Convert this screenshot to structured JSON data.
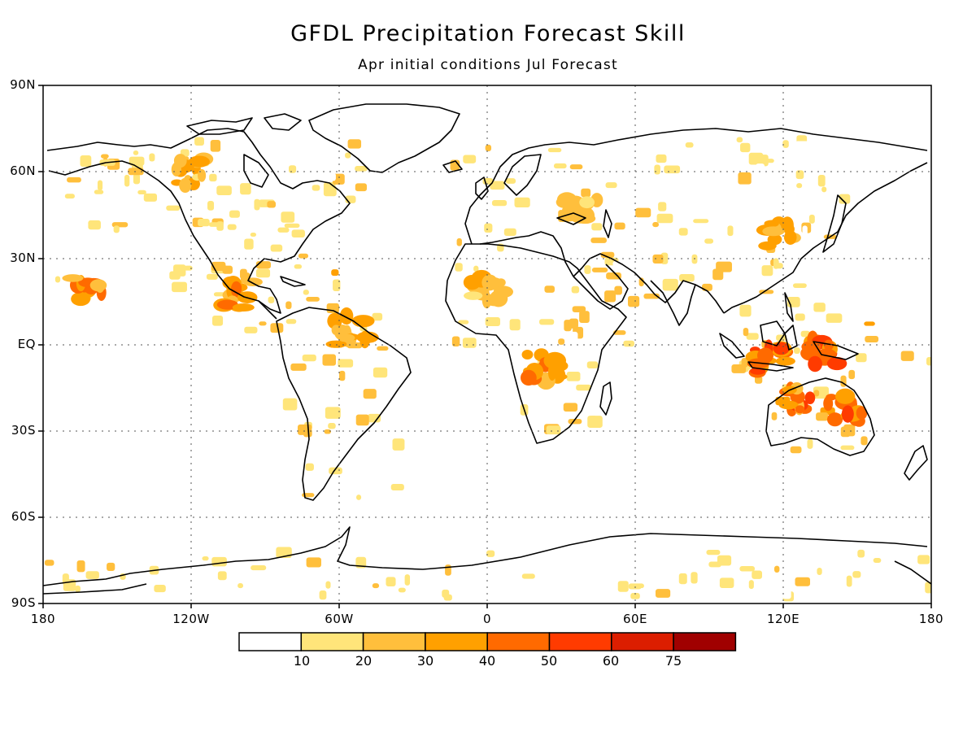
{
  "title": "GFDL Precipitation Forecast Skill",
  "subtitle": "Apr initial conditions   Jul Forecast",
  "axes": {
    "lat_labels": [
      "90N",
      "60N",
      "30N",
      "EQ",
      "30S",
      "60S",
      "90S"
    ],
    "lon_labels": [
      "180",
      "120W",
      "60W",
      "0",
      "60E",
      "120E",
      "180"
    ]
  },
  "colorbar": {
    "levels": [
      "10",
      "20",
      "30",
      "40",
      "50",
      "60",
      "75"
    ],
    "colors": [
      "#ffffff",
      "#ffe57a",
      "#ffbf3c",
      "#ffa000",
      "#ff6a00",
      "#ff3b00",
      "#dc1e00",
      "#a00000"
    ]
  },
  "chart_data": {
    "type": "heatmap",
    "title": "GFDL Precipitation Forecast Skill",
    "subtitle": "Apr initial conditions   Jul Forecast",
    "xlim": [
      -180,
      180
    ],
    "ylim": [
      -90,
      90
    ],
    "grid": true,
    "highlights": [
      {
        "lon": 135,
        "lat": -2,
        "skill": 55
      },
      {
        "lon": 115,
        "lat": -6,
        "skill": 55
      },
      {
        "lon": 145,
        "lat": -23,
        "skill": 52
      },
      {
        "lon": 125,
        "lat": -20,
        "skill": 50
      },
      {
        "lon": 22,
        "lat": -8,
        "skill": 45
      },
      {
        "lon": -100,
        "lat": 17,
        "skill": 45
      },
      {
        "lon": -162,
        "lat": 20,
        "skill": 45
      },
      {
        "lon": -55,
        "lat": 5,
        "skill": 35
      },
      {
        "lon": -120,
        "lat": 60,
        "skill": 35
      },
      {
        "lon": 120,
        "lat": 38,
        "skill": 38
      },
      {
        "lon": 38,
        "lat": 48,
        "skill": 30
      },
      {
        "lon": 0,
        "lat": 18,
        "skill": 30
      }
    ]
  }
}
